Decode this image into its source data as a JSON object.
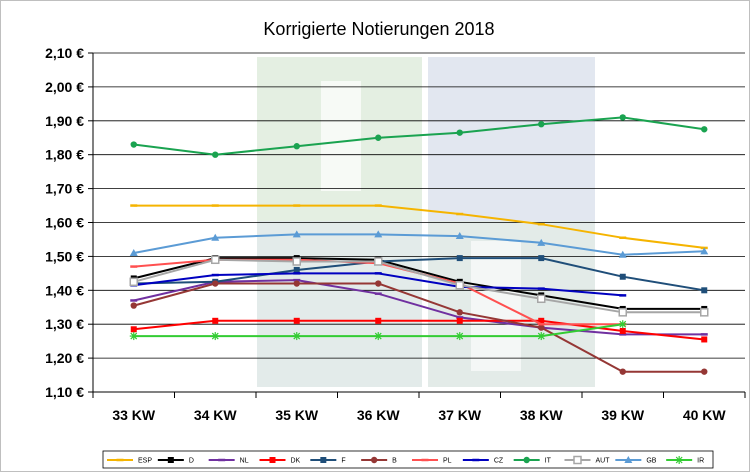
{
  "chart_data": {
    "type": "line",
    "title": "Korrigierte Notierungen 2018",
    "xlabel": "",
    "ylabel": "",
    "categories": [
      "33 KW",
      "34 KW",
      "35 KW",
      "36 KW",
      "37 KW",
      "38 KW",
      "39 KW",
      "40 KW"
    ],
    "ylim": [
      1.1,
      2.1
    ],
    "yticks": [
      "1,10 €",
      "1,20 €",
      "1,30 €",
      "1,40 €",
      "1,50 €",
      "1,60 €",
      "1,70 €",
      "1,80 €",
      "1,90 €",
      "2,00 €",
      "2,10 €"
    ],
    "grid": true,
    "legend_position": "bottom",
    "watermark_colors": [
      "#e4efe2",
      "#e2e7f0"
    ],
    "series": [
      {
        "name": "ESP",
        "color": "#f5b400",
        "marker": "dash",
        "values": [
          1.65,
          1.65,
          1.65,
          1.65,
          1.625,
          1.595,
          1.555,
          1.525
        ]
      },
      {
        "name": "D",
        "color": "#000000",
        "marker": "square",
        "values": [
          1.435,
          1.495,
          1.495,
          1.49,
          1.425,
          1.385,
          1.345,
          1.345
        ]
      },
      {
        "name": "NL",
        "color": "#7030a0",
        "marker": "dash",
        "values": [
          1.37,
          1.425,
          1.43,
          1.39,
          1.32,
          1.29,
          1.27,
          1.27
        ]
      },
      {
        "name": "DK",
        "color": "#ff0000",
        "marker": "square",
        "values": [
          1.285,
          1.31,
          1.31,
          1.31,
          1.31,
          1.31,
          1.28,
          1.255
        ]
      },
      {
        "name": "F",
        "color": "#1f4e79",
        "marker": "square",
        "values": [
          1.42,
          1.425,
          1.46,
          1.485,
          1.495,
          1.495,
          1.44,
          1.4
        ]
      },
      {
        "name": "B",
        "color": "#953735",
        "marker": "circle",
        "values": [
          1.355,
          1.42,
          1.42,
          1.42,
          1.335,
          1.29,
          1.16,
          1.16
        ]
      },
      {
        "name": "PL",
        "color": "#ff5050",
        "marker": "dash",
        "values": [
          1.47,
          1.49,
          1.49,
          1.48,
          1.42,
          1.3,
          1.3,
          null
        ]
      },
      {
        "name": "CZ",
        "color": "#0000c0",
        "marker": "dash",
        "values": [
          1.415,
          1.445,
          1.45,
          1.45,
          1.41,
          1.405,
          1.385,
          null
        ]
      },
      {
        "name": "IT",
        "color": "#1aa350",
        "marker": "circle",
        "values": [
          1.83,
          1.8,
          1.825,
          1.85,
          1.865,
          1.89,
          1.91,
          1.875
        ]
      },
      {
        "name": "AUT",
        "color": "#a6a6a6",
        "marker": "hollow-square",
        "values": [
          1.425,
          1.49,
          1.485,
          1.485,
          1.415,
          1.375,
          1.335,
          1.335
        ]
      },
      {
        "name": "GB",
        "color": "#5b9bd5",
        "marker": "triangle",
        "values": [
          1.51,
          1.555,
          1.565,
          1.565,
          1.56,
          1.54,
          1.505,
          1.515
        ]
      },
      {
        "name": "IR",
        "color": "#33cc33",
        "marker": "star",
        "values": [
          1.265,
          1.265,
          1.265,
          1.265,
          1.265,
          1.265,
          1.3,
          null
        ]
      }
    ]
  }
}
